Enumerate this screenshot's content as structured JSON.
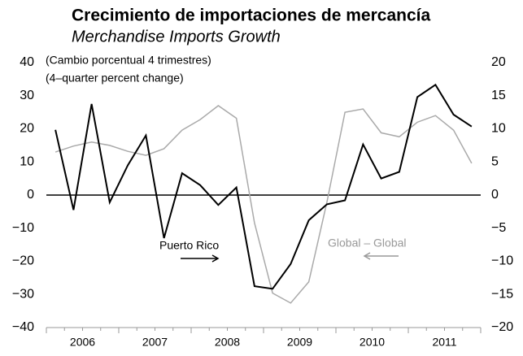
{
  "chart_data": {
    "type": "line",
    "title": "Crecimiento de importaciones de mercancía",
    "subtitle": "Merchandise Imports Growth",
    "notes": [
      "(Cambio porcentual 4 trimestres)",
      "(4–quarter percent change)"
    ],
    "categories": [
      null,
      null,
      null,
      null,
      null,
      null,
      null,
      null,
      null,
      null,
      null,
      null,
      null,
      null,
      null,
      null,
      null,
      null,
      null,
      null,
      null,
      null,
      null,
      null
    ],
    "year_labels": [
      "2006",
      "2007",
      "2008",
      "2009",
      "2010",
      "2011"
    ],
    "series": [
      {
        "name": "Puerto Rico",
        "color": "#000000",
        "axis": "y",
        "values": [
          19.7,
          -4.5,
          27.5,
          -2.2,
          9,
          18,
          -13,
          6.6,
          3,
          -3,
          2.3,
          -27.5,
          -28.3,
          -20.8,
          -7.6,
          -2.8,
          -1.6,
          15.3,
          5,
          7,
          29.6,
          33.3,
          24.3,
          20.7
        ]
      },
      {
        "name": "Global – Global",
        "color": "#aaaaaa",
        "axis": "y2",
        "values": [
          6.5,
          7.4,
          8,
          7.5,
          6.6,
          6,
          7,
          9.8,
          11.4,
          13.5,
          11.6,
          -4.2,
          -14.8,
          -16.3,
          -13.1,
          -1.1,
          12.5,
          13,
          9.4,
          8.8,
          11,
          12,
          9.8,
          4.8
        ]
      }
    ],
    "ylim": [
      -40,
      40
    ],
    "yticks": [
      {
        "value": -40,
        "label": "−40"
      },
      {
        "value": -30,
        "label": "−30"
      },
      {
        "value": -20,
        "label": "−20"
      },
      {
        "value": -10,
        "label": "−10"
      },
      0,
      10,
      20,
      30,
      40
    ],
    "y2lim": [
      -20,
      20
    ],
    "y2ticks": [
      {
        "value": -20,
        "label": "−20"
      },
      {
        "value": -15,
        "label": "−15"
      },
      {
        "value": -10,
        "label": "−10"
      },
      {
        "value": -5,
        "label": "−5"
      },
      0,
      5,
      10,
      15,
      20
    ]
  }
}
